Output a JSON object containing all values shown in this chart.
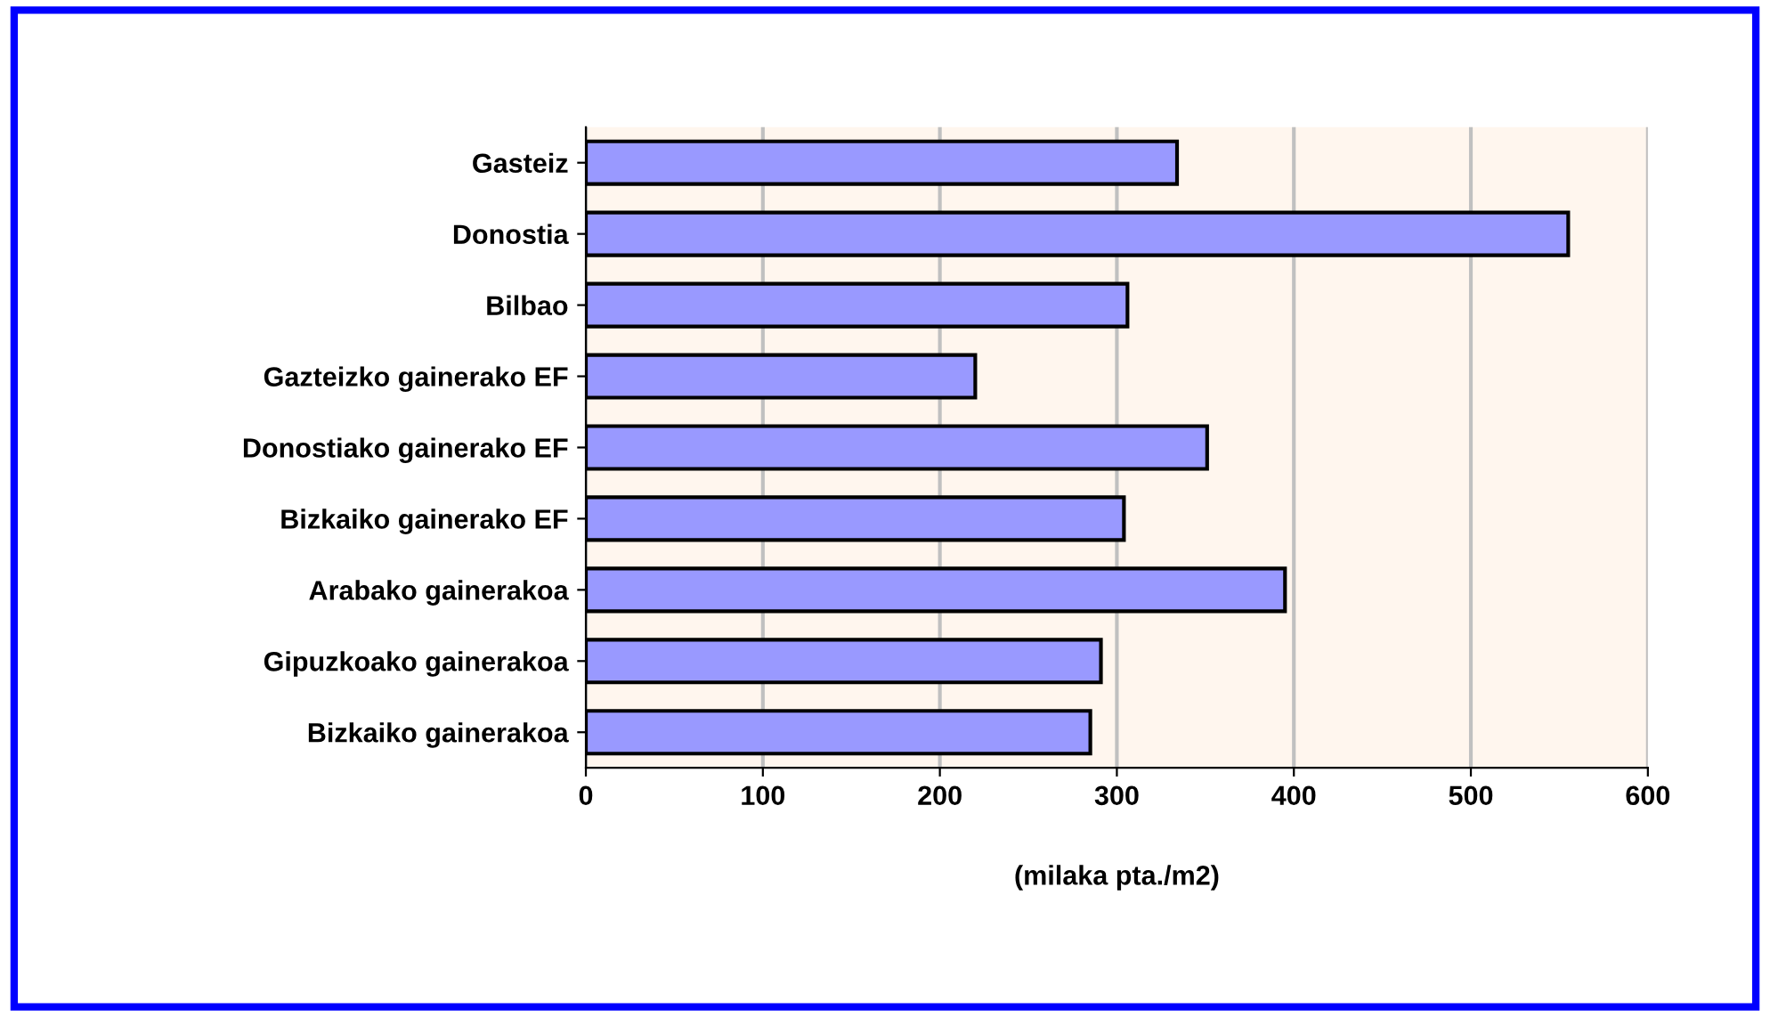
{
  "chart_data": {
    "type": "bar",
    "orientation": "horizontal",
    "xlabel": "(milaka pta./m2)",
    "categories": [
      "Gasteiz",
      "Donostia",
      "Bilbao",
      "Gazteizko gainerako EF",
      "Donostiako gainerako EF",
      "Bizkaiko gainerako EF",
      "Arabako gainerakoa",
      "Gipuzkoako gainerakoa",
      "Bizkaiko gainerakoa"
    ],
    "values": [
      334,
      555,
      306,
      220,
      351,
      304,
      395,
      291,
      285
    ],
    "color": "#9999ff",
    "xlim": [
      0,
      600
    ],
    "xticks": [
      0,
      100,
      200,
      300,
      400,
      500,
      600
    ],
    "grid": "x",
    "legend": false
  }
}
